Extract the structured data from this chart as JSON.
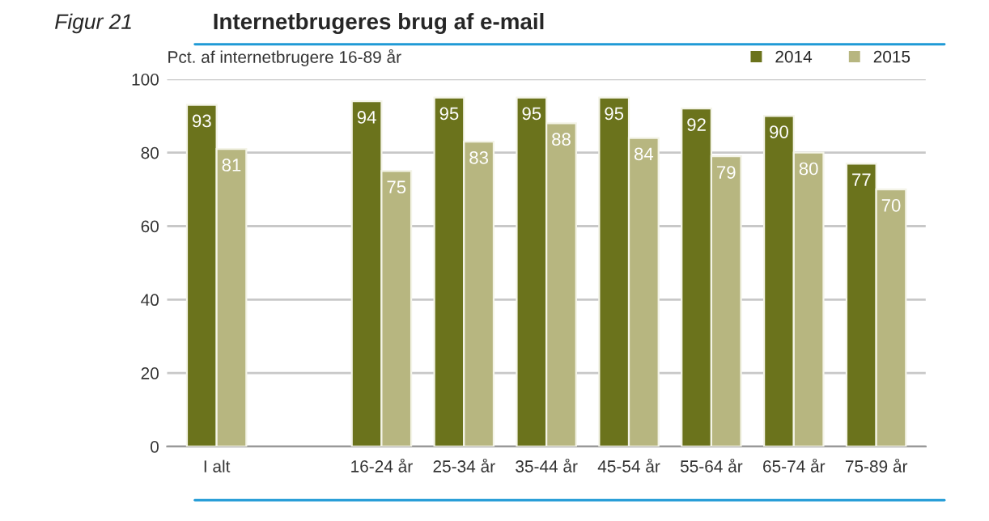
{
  "chart_data": {
    "type": "bar",
    "title": "Internetbrugeres brug af e-mail",
    "ylabel": "Pct. af internetbrugere 16-89 år",
    "annotations": [
      "Figur 21"
    ],
    "categories": [
      "I alt",
      null,
      "16-24 år",
      "25-34 år",
      "35-44 år",
      "45-54 år",
      "55-64 år",
      "65-74 år",
      "75-89 år"
    ],
    "series": [
      {
        "name": "2014",
        "color": "#6b731c",
        "values": [
          93,
          null,
          94,
          95,
          95,
          95,
          92,
          90,
          77
        ]
      },
      {
        "name": "2015",
        "color": "#b7b680",
        "values": [
          81,
          null,
          75,
          83,
          88,
          84,
          79,
          80,
          70
        ]
      }
    ],
    "ylim": [
      0,
      100
    ],
    "yticks": [
      0,
      20,
      40,
      60,
      80,
      100
    ],
    "grid": "y",
    "legend": "top right",
    "data_labels": true
  }
}
